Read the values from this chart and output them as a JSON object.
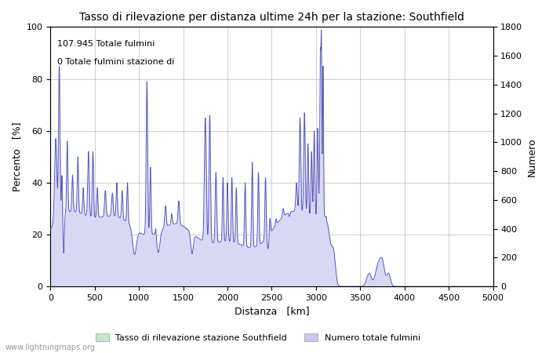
{
  "title": "Tasso di rilevazione per distanza ultime 24h per la stazione: Southfield",
  "xlabel": "Distanza   [km]",
  "ylabel_left": "Percento   [%]",
  "ylabel_right": "Numero",
  "annotation_line1": "107.945 Totale fulmini",
  "annotation_line2": "0 Totale fulmini stazione di",
  "xlim": [
    0,
    5000
  ],
  "ylim_left": [
    0,
    100
  ],
  "ylim_right": [
    0,
    1800
  ],
  "xticks": [
    0,
    500,
    1000,
    1500,
    2000,
    2500,
    3000,
    3500,
    4000,
    4500,
    5000
  ],
  "yticks_left": [
    0,
    20,
    40,
    60,
    80,
    100
  ],
  "yticks_right": [
    0,
    200,
    400,
    600,
    800,
    1000,
    1200,
    1400,
    1600,
    1800
  ],
  "legend_label1": "Tasso di rilevazione stazione Southfield",
  "legend_label2": "Numero totale fulmini",
  "legend_color1": "#c8e6c8",
  "legend_color2": "#c8c8f0",
  "watermark": "www.lightningmaps.org",
  "line_color": "#5555bb",
  "fill_color": "#d8d8f5",
  "green_fill_color": "#c8e8c0",
  "background_color": "#ffffff",
  "grid_color": "#bbbbbb"
}
